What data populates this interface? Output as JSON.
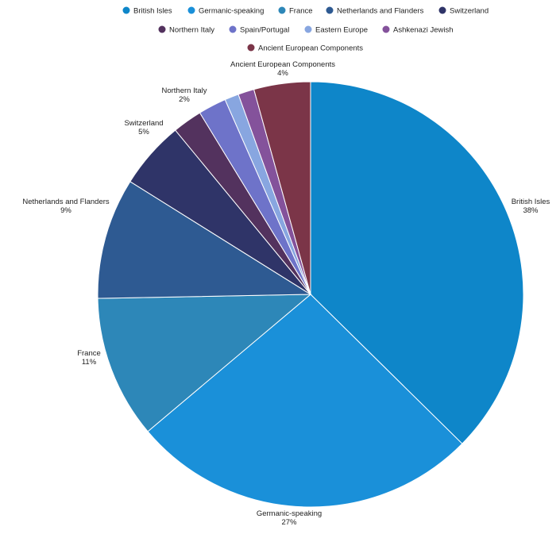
{
  "chart_data": {
    "type": "pie",
    "title": "",
    "legend_position": "top",
    "show_percentages": true,
    "slices": [
      {
        "label": "British Isles",
        "value": 38,
        "color": "#0e86c9"
      },
      {
        "label": "Germanic-speaking",
        "value": 27,
        "color": "#1a90d9"
      },
      {
        "label": "France",
        "value": 11,
        "color": "#2d87b8"
      },
      {
        "label": "Netherlands and Flanders",
        "value": 9,
        "color": "#2e5a92"
      },
      {
        "label": "Switzerland",
        "value": 5,
        "color": "#2f3468"
      },
      {
        "label": "Northern Italy",
        "value": 2,
        "color": "#53325e"
      },
      {
        "label": "Spain/Portugal",
        "value": 2,
        "color": "#6e73c9"
      },
      {
        "label": "Eastern Europe",
        "value": 1,
        "color": "#88a6e0"
      },
      {
        "label": "Ashkenazi Jewish",
        "value": 1,
        "color": "#84529b"
      },
      {
        "label": "Ancient European Components",
        "value": 4,
        "color": "#7b3548"
      }
    ],
    "rendered_fractions": [
      0.3739,
      0.2646,
      0.1085,
      0.092,
      0.0514,
      0.0225,
      0.0213,
      0.0107,
      0.0122,
      0.0429
    ]
  }
}
